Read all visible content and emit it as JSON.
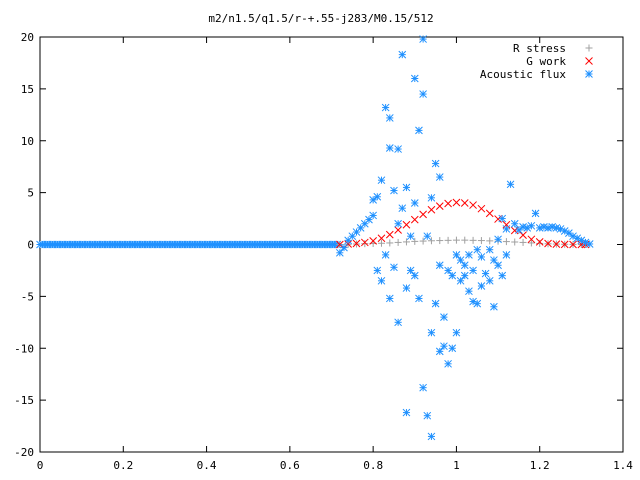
{
  "chart_data": {
    "type": "scatter",
    "title": "m2/n1.5/q1.5/r-+.55-j283/M0.15/512",
    "xlabel": "",
    "ylabel": "",
    "xlim": [
      0,
      1.4
    ],
    "ylim": [
      -20,
      20
    ],
    "xticks": [
      "0",
      "0.2",
      "0.4",
      "0.6",
      "0.8",
      "1",
      "1.2",
      "1.4"
    ],
    "yticks": [
      "20",
      "15",
      "10",
      "5",
      "0",
      "-5",
      "-10",
      "-15",
      "-20"
    ],
    "grid": false,
    "legend_position": "top-right",
    "series": [
      {
        "name": "R stress",
        "marker": "+",
        "color": "#a0a0a0",
        "points": [
          [
            0.72,
            0
          ],
          [
            0.74,
            0.02
          ],
          [
            0.76,
            0.05
          ],
          [
            0.78,
            0.08
          ],
          [
            0.8,
            0.1
          ],
          [
            0.82,
            0.12
          ],
          [
            0.84,
            0.15
          ],
          [
            0.86,
            0.2
          ],
          [
            0.88,
            0.25
          ],
          [
            0.9,
            0.3
          ],
          [
            0.92,
            0.33
          ],
          [
            0.94,
            0.36
          ],
          [
            0.96,
            0.38
          ],
          [
            0.98,
            0.4
          ],
          [
            1.0,
            0.42
          ],
          [
            1.02,
            0.42
          ],
          [
            1.04,
            0.4
          ],
          [
            1.06,
            0.38
          ],
          [
            1.08,
            0.35
          ],
          [
            1.1,
            0.32
          ],
          [
            1.12,
            0.28
          ],
          [
            1.14,
            0.24
          ],
          [
            1.16,
            0.2
          ],
          [
            1.18,
            0.15
          ],
          [
            1.2,
            0.1
          ],
          [
            1.22,
            0.07
          ],
          [
            1.24,
            0.04
          ],
          [
            1.26,
            0.02
          ],
          [
            1.28,
            0.01
          ],
          [
            1.3,
            0
          ],
          [
            1.31,
            0
          ]
        ]
      },
      {
        "name": "G work",
        "marker": "x",
        "color": "#ff0000",
        "points": [
          [
            0.72,
            0
          ],
          [
            0.74,
            0.05
          ],
          [
            0.76,
            0.1
          ],
          [
            0.78,
            0.2
          ],
          [
            0.8,
            0.35
          ],
          [
            0.82,
            0.6
          ],
          [
            0.84,
            0.95
          ],
          [
            0.86,
            1.4
          ],
          [
            0.88,
            1.9
          ],
          [
            0.9,
            2.4
          ],
          [
            0.92,
            2.9
          ],
          [
            0.94,
            3.35
          ],
          [
            0.96,
            3.7
          ],
          [
            0.98,
            3.95
          ],
          [
            1.0,
            4.05
          ],
          [
            1.02,
            4.0
          ],
          [
            1.04,
            3.8
          ],
          [
            1.06,
            3.45
          ],
          [
            1.08,
            3.0
          ],
          [
            1.1,
            2.45
          ],
          [
            1.12,
            1.9
          ],
          [
            1.14,
            1.35
          ],
          [
            1.16,
            0.9
          ],
          [
            1.18,
            0.5
          ],
          [
            1.2,
            0.25
          ],
          [
            1.22,
            0.1
          ],
          [
            1.24,
            0.04
          ],
          [
            1.26,
            0.01
          ],
          [
            1.28,
            0
          ],
          [
            1.3,
            0
          ],
          [
            1.31,
            0
          ]
        ]
      },
      {
        "name": "Acoustic flux",
        "marker": "*",
        "color": "#1e90ff",
        "points": [
          [
            0.72,
            -0.8
          ],
          [
            0.73,
            -0.3
          ],
          [
            0.74,
            0.4
          ],
          [
            0.75,
            0.8
          ],
          [
            0.76,
            1.2
          ],
          [
            0.77,
            1.6
          ],
          [
            0.78,
            2.0
          ],
          [
            0.79,
            2.4
          ],
          [
            0.8,
            2.8
          ],
          [
            0.8,
            4.3
          ],
          [
            0.81,
            4.6
          ],
          [
            0.81,
            -2.5
          ],
          [
            0.82,
            6.2
          ],
          [
            0.82,
            -3.5
          ],
          [
            0.83,
            13.2
          ],
          [
            0.83,
            -1.0
          ],
          [
            0.84,
            9.3
          ],
          [
            0.84,
            12.2
          ],
          [
            0.84,
            -5.2
          ],
          [
            0.85,
            -2.2
          ],
          [
            0.85,
            5.2
          ],
          [
            0.86,
            9.2
          ],
          [
            0.86,
            -7.5
          ],
          [
            0.86,
            2.0
          ],
          [
            0.87,
            18.3
          ],
          [
            0.87,
            3.5
          ],
          [
            0.88,
            -4.2
          ],
          [
            0.88,
            5.5
          ],
          [
            0.88,
            -16.2
          ],
          [
            0.89,
            0.8
          ],
          [
            0.89,
            -2.5
          ],
          [
            0.9,
            16.0
          ],
          [
            0.9,
            -3.0
          ],
          [
            0.9,
            4.0
          ],
          [
            0.91,
            -5.2
          ],
          [
            0.91,
            11.0
          ],
          [
            0.92,
            19.8
          ],
          [
            0.92,
            -13.8
          ],
          [
            0.92,
            14.5
          ],
          [
            0.93,
            -16.5
          ],
          [
            0.93,
            0.8
          ],
          [
            0.94,
            -8.5
          ],
          [
            0.94,
            4.5
          ],
          [
            0.94,
            -18.5
          ],
          [
            0.95,
            -5.7
          ],
          [
            0.95,
            7.8
          ],
          [
            0.96,
            6.5
          ],
          [
            0.96,
            -10.3
          ],
          [
            0.96,
            -2.0
          ],
          [
            0.97,
            -7.0
          ],
          [
            0.97,
            -9.8
          ],
          [
            0.98,
            -11.5
          ],
          [
            0.98,
            -2.5
          ],
          [
            0.99,
            -10.0
          ],
          [
            0.99,
            -3.0
          ],
          [
            1.0,
            -8.5
          ],
          [
            1.0,
            -1.0
          ],
          [
            1.01,
            -3.5
          ],
          [
            1.01,
            -1.5
          ],
          [
            1.02,
            -3.0
          ],
          [
            1.02,
            -2.0
          ],
          [
            1.03,
            -4.5
          ],
          [
            1.03,
            -1.0
          ],
          [
            1.04,
            -5.5
          ],
          [
            1.04,
            -2.5
          ],
          [
            1.05,
            -0.5
          ],
          [
            1.05,
            -5.7
          ],
          [
            1.06,
            -4.0
          ],
          [
            1.06,
            -1.2
          ],
          [
            1.07,
            -2.8
          ],
          [
            1.08,
            -3.5
          ],
          [
            1.08,
            -0.5
          ],
          [
            1.09,
            -6.0
          ],
          [
            1.09,
            -1.5
          ],
          [
            1.1,
            -2.0
          ],
          [
            1.1,
            0.5
          ],
          [
            1.11,
            2.5
          ],
          [
            1.11,
            -3.0
          ],
          [
            1.12,
            1.5
          ],
          [
            1.12,
            -1.0
          ],
          [
            1.13,
            5.8
          ],
          [
            1.14,
            2.0
          ],
          [
            1.15,
            1.4
          ],
          [
            1.16,
            1.7
          ],
          [
            1.17,
            1.6
          ],
          [
            1.18,
            1.8
          ],
          [
            1.19,
            3.0
          ],
          [
            1.2,
            1.6
          ],
          [
            1.21,
            1.7
          ],
          [
            1.22,
            1.6
          ],
          [
            1.23,
            1.7
          ],
          [
            1.24,
            1.6
          ],
          [
            1.25,
            1.5
          ],
          [
            1.26,
            1.3
          ],
          [
            1.27,
            1.1
          ],
          [
            1.28,
            0.8
          ],
          [
            1.29,
            0.6
          ],
          [
            1.3,
            0.4
          ],
          [
            1.31,
            0.2
          ],
          [
            1.32,
            0.05
          ]
        ]
      }
    ]
  }
}
